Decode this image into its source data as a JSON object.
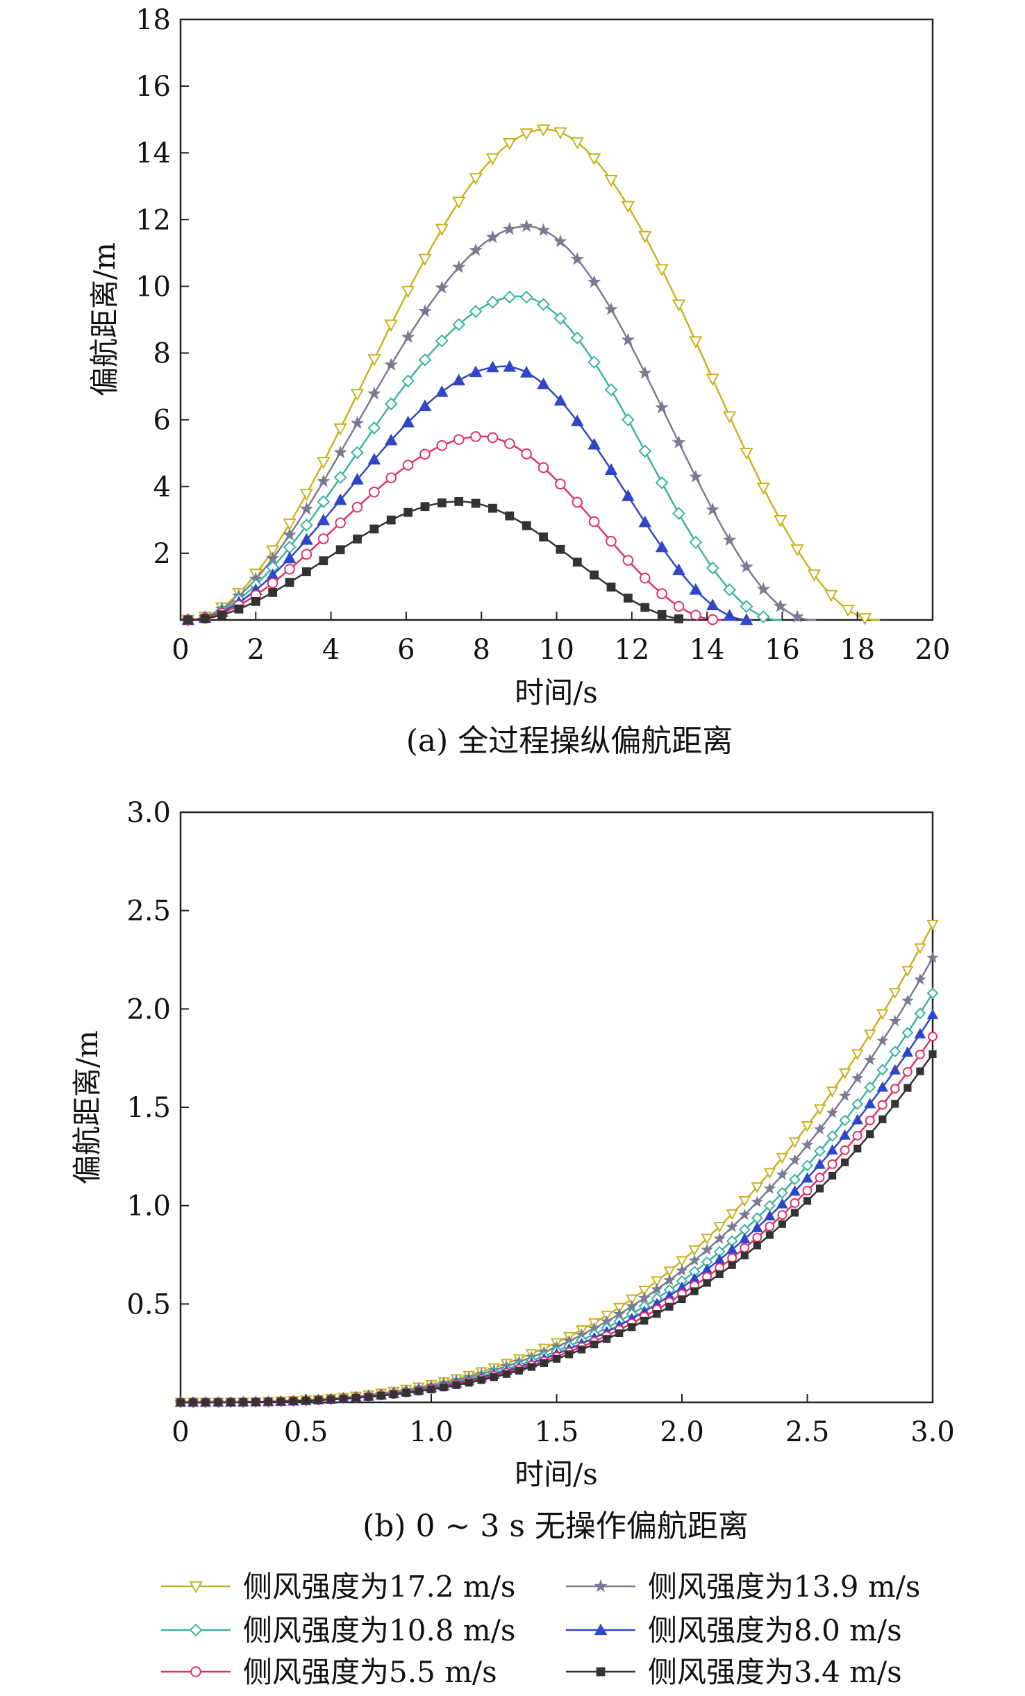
{
  "chart_data": [
    {
      "type": "line",
      "caption": "(a) 全过程操纵偏航距离",
      "xlabel": "时间/s",
      "ylabel": "偏航距离/m",
      "xlim": [
        0,
        20
      ],
      "ylim": [
        0,
        18
      ],
      "xticks": [
        0,
        2,
        4,
        6,
        8,
        10,
        12,
        14,
        16,
        18,
        20
      ],
      "yticks": [
        2,
        4,
        6,
        8,
        10,
        12,
        14,
        16,
        18
      ],
      "xtick_labels": [
        "0",
        "2",
        "4",
        "6",
        "8",
        "10",
        "12",
        "14",
        "16",
        "18",
        "20"
      ],
      "ytick_labels": [
        "2",
        "4",
        "6",
        "8",
        "10",
        "12",
        "14",
        "16",
        "18"
      ],
      "grid": false,
      "series": [
        {
          "name": "侧风强度为17.2 m/s",
          "peak_x": 9.7,
          "peak_y": 14.7,
          "end_x": 18.5
        },
        {
          "name": "侧风强度为13.9 m/s",
          "peak_x": 9.2,
          "peak_y": 11.8,
          "end_x": 16.8
        },
        {
          "name": "侧风强度为10.8 m/s",
          "peak_x": 9.0,
          "peak_y": 9.7,
          "end_x": 15.9
        },
        {
          "name": "侧风强度为8.0 m/s",
          "peak_x": 8.6,
          "peak_y": 7.6,
          "end_x": 15.1
        },
        {
          "name": "侧风强度为5.5 m/s",
          "peak_x": 8.0,
          "peak_y": 5.5,
          "end_x": 14.3
        },
        {
          "name": "侧风强度为3.4 m/s",
          "peak_x": 7.4,
          "peak_y": 3.55,
          "end_x": 13.6
        }
      ]
    },
    {
      "type": "line",
      "caption": "(b) 0 ~ 3 s 无操作偏航距离",
      "xlabel": "时间/s",
      "ylabel": "偏航距离/m",
      "xlim": [
        0,
        3.0
      ],
      "ylim": [
        0,
        3.0
      ],
      "xticks": [
        0,
        0.5,
        1.0,
        1.5,
        2.0,
        2.5,
        3.0
      ],
      "yticks": [
        0.5,
        1.0,
        1.5,
        2.0,
        2.5,
        3.0
      ],
      "xtick_labels": [
        "0",
        "0.5",
        "1.0",
        "1.5",
        "2.0",
        "2.5",
        "3.0"
      ],
      "ytick_labels": [
        "0.5",
        "1.0",
        "1.5",
        "2.0",
        "2.5",
        "3.0"
      ],
      "grid": false,
      "series": [
        {
          "name": "侧风强度为17.2 m/s",
          "y_at_3s": 2.43
        },
        {
          "name": "侧风强度为13.9 m/s",
          "y_at_3s": 2.26
        },
        {
          "name": "侧风强度为10.8 m/s",
          "y_at_3s": 2.08
        },
        {
          "name": "侧风强度为8.0 m/s",
          "y_at_3s": 1.97
        },
        {
          "name": "侧风强度为5.5 m/s",
          "y_at_3s": 1.86
        },
        {
          "name": "侧风强度为3.4 m/s",
          "y_at_3s": 1.77
        }
      ]
    }
  ],
  "legend": {
    "position": "bottom",
    "entries": [
      {
        "label": "侧风强度为17.2 m/s",
        "color": "#c9b21e",
        "marker": "triangle-down"
      },
      {
        "label": "侧风强度为13.9 m/s",
        "color": "#7a7a92",
        "marker": "star"
      },
      {
        "label": "侧风强度为10.8 m/s",
        "color": "#3bb3a0",
        "marker": "diamond"
      },
      {
        "label": "侧风强度为8.0 m/s",
        "color": "#2f46c8",
        "marker": "triangle-up"
      },
      {
        "label": "侧风强度为5.5 m/s",
        "color": "#e0306a",
        "marker": "circle"
      },
      {
        "label": "侧风强度为3.4 m/s",
        "color": "#333333",
        "marker": "square"
      }
    ]
  }
}
